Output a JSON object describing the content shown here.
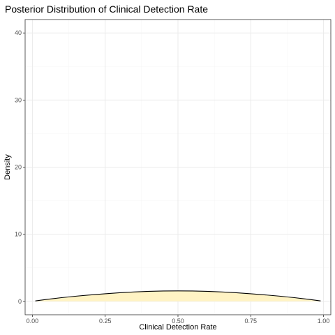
{
  "chart_data": {
    "type": "area",
    "title": "Posterior Distribution of Clinical Detection Rate",
    "xlabel": "Clinical Detection Rate",
    "ylabel": "Density",
    "xlim": [
      -0.025,
      1.025
    ],
    "ylim": [
      -2,
      42
    ],
    "x_ticks": [
      0.0,
      0.25,
      0.5,
      0.75,
      1.0
    ],
    "x_tick_labels": [
      "0.00",
      "0.25",
      "0.50",
      "0.75",
      "1.00"
    ],
    "y_ticks": [
      0,
      10,
      20,
      30,
      40
    ],
    "y_tick_labels": [
      "0",
      "10",
      "20",
      "30",
      "40"
    ],
    "grid": true,
    "legend": "none",
    "colors": {
      "fill": "#fff3c4",
      "line": "#000000",
      "grid_major": "#ebebeb",
      "grid_minor": "#f5f5f5",
      "panel_border": "#333333"
    },
    "series": [
      {
        "x": [
          0.01,
          0.05,
          0.1,
          0.15,
          0.2,
          0.25,
          0.3,
          0.35,
          0.4,
          0.45,
          0.5,
          0.55,
          0.6,
          0.65,
          0.7,
          0.75,
          0.8,
          0.85,
          0.9,
          0.95,
          0.99
        ],
        "y": [
          0.06,
          0.29,
          0.55,
          0.77,
          0.96,
          1.13,
          1.28,
          1.4,
          1.49,
          1.54,
          1.56,
          1.54,
          1.49,
          1.4,
          1.28,
          1.13,
          0.96,
          0.77,
          0.55,
          0.29,
          0.06
        ]
      }
    ]
  }
}
